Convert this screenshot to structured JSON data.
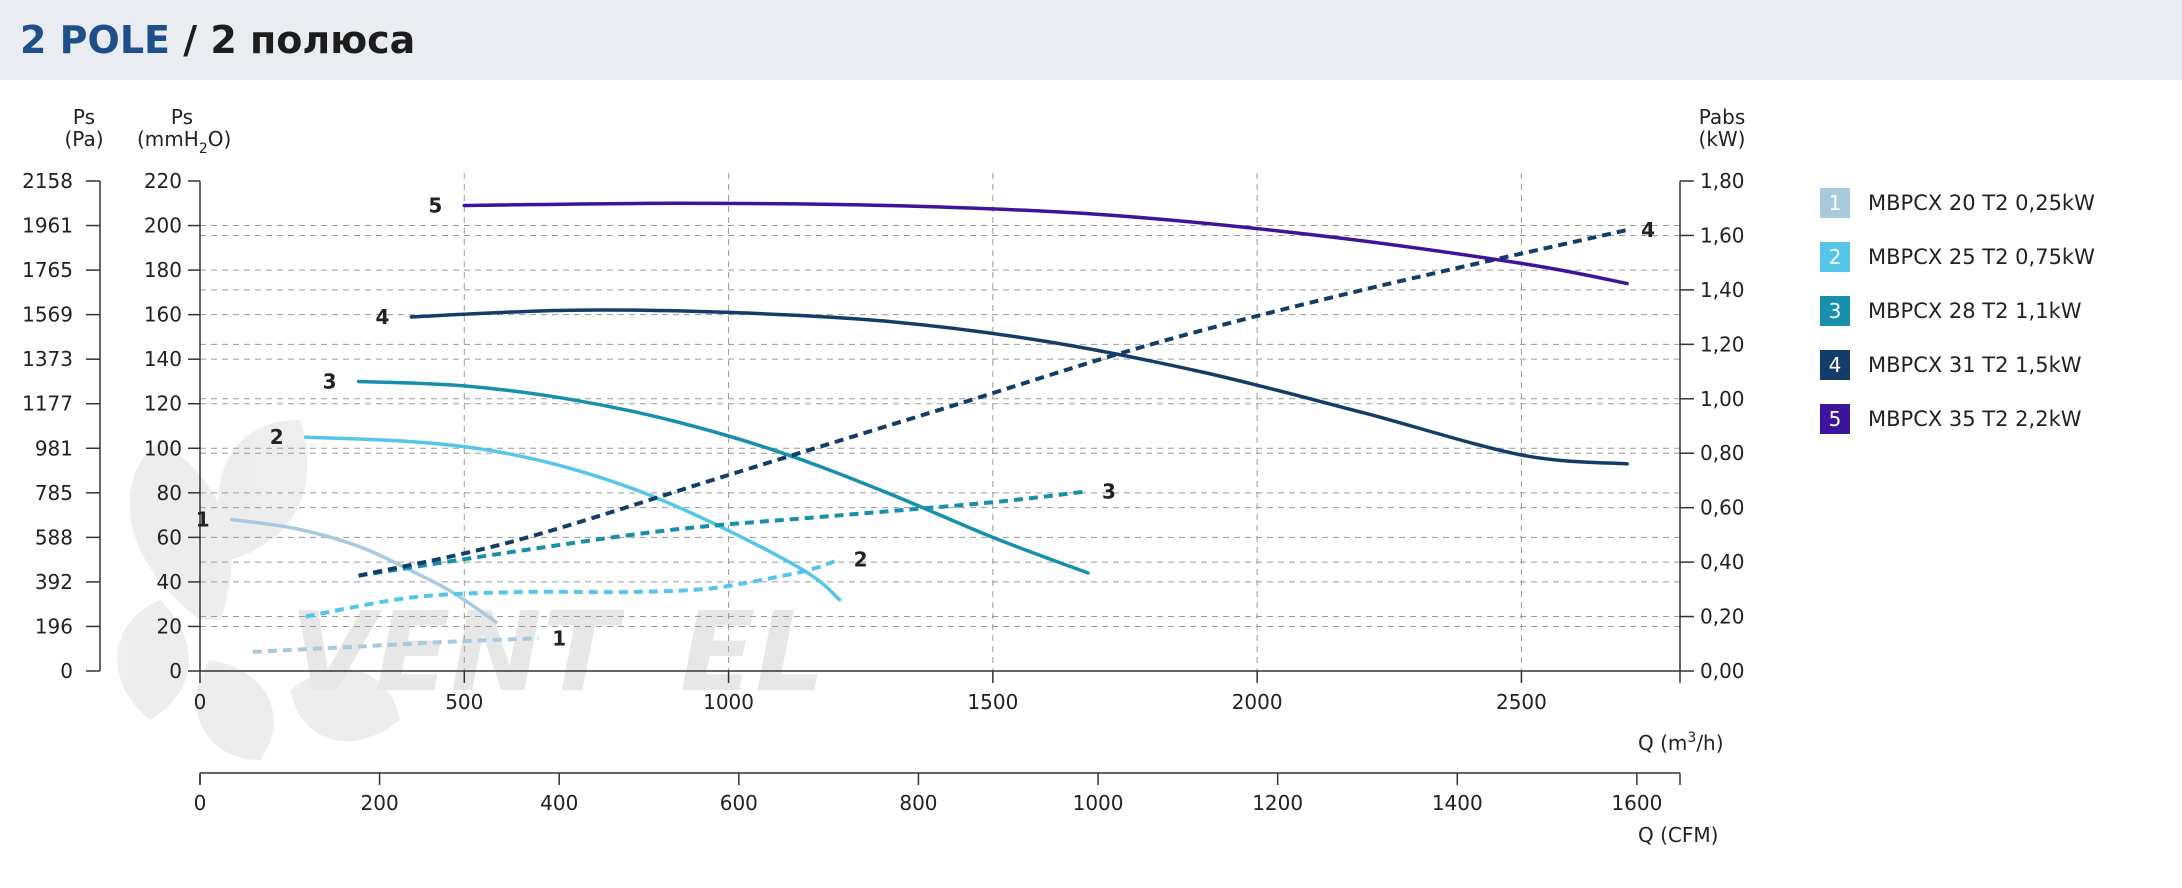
{
  "header": {
    "title_bold": "2 POLE",
    "title_rest": " / 2 полюса"
  },
  "colors": {
    "s1": "#a9c9dc",
    "s2": "#55c6ea",
    "s3": "#1690ac",
    "s4": "#143c68",
    "s5": "#3d149c",
    "header_bg": "#e9edf1",
    "brand_blue": "#1f4f8a",
    "grid": "#9a9a9a"
  },
  "watermark": "VENTEL logo (fan blades)",
  "chart_data": {
    "type": "line",
    "axes": {
      "pa_label_1": "Ps",
      "pa_label_2": "(Pa)",
      "mm_label_1": "Ps",
      "mm_label_2": "(mmH",
      "mm_label_sub": "2",
      "mm_label_3": "O)",
      "kw_label_1": "Pabs",
      "kw_label_2": "(kW)",
      "x_label": "Q (m",
      "x_label_sup": "3",
      "x_label_end": "/h)",
      "cfm_label": "Q (CFM)",
      "ylim_mmH2O": [
        0,
        220
      ],
      "ylim_kw": [
        0,
        1.8
      ],
      "xlim_m3h": [
        0,
        2800
      ],
      "pa_ticks": [
        "2158",
        "1961",
        "1765",
        "1569",
        "1373",
        "1177",
        "981",
        "785",
        "588",
        "392",
        "196",
        "0"
      ],
      "mm_ticks": [
        "220",
        "200",
        "180",
        "160",
        "140",
        "120",
        "100",
        "80",
        "60",
        "40",
        "20",
        "0"
      ],
      "kw_ticks": [
        "1,80",
        "1,60",
        "1,40",
        "1,20",
        "1,00",
        "0,80",
        "0,60",
        "0,40",
        "0,20",
        "0,00"
      ],
      "x_ticks": [
        "0",
        "500",
        "1000",
        "1500",
        "2000",
        "2500"
      ],
      "cfm_ticks": [
        "0",
        "200",
        "400",
        "600",
        "800",
        "1000",
        "1200",
        "1400",
        "1600"
      ],
      "grid": true
    },
    "series": [
      {
        "name": "MBPCX 20 T2 0,25kW",
        "number": "1",
        "color": "#a9c9dc",
        "pressure": {
          "x": [
            60,
            180,
            300,
            400,
            480,
            560
          ],
          "y": [
            68,
            64,
            56,
            45,
            35,
            22
          ]
        },
        "power": {
          "x": [
            100,
            300,
            500,
            640
          ],
          "y": [
            0.07,
            0.09,
            0.11,
            0.12
          ]
        }
      },
      {
        "name": "MBPCX 25 T2 0,75kW",
        "number": "2",
        "color": "#55c6ea",
        "pressure": {
          "x": [
            200,
            400,
            550,
            700,
            850,
            1000,
            1150,
            1210
          ],
          "y": [
            105,
            103,
            99,
            91,
            79,
            63,
            44,
            32
          ]
        },
        "power": {
          "x": [
            200,
            400,
            600,
            800,
            950,
            1050,
            1150,
            1210
          ],
          "y": [
            0.2,
            0.27,
            0.29,
            0.29,
            0.3,
            0.33,
            0.37,
            0.41
          ]
        }
      },
      {
        "name": "MBPCX 28 T2 1,1kW",
        "number": "3",
        "color": "#1690ac",
        "pressure": {
          "x": [
            300,
            500,
            700,
            900,
            1100,
            1300,
            1500,
            1680
          ],
          "y": [
            130,
            128,
            122,
            112,
            98,
            80,
            60,
            44
          ]
        },
        "power": {
          "x": [
            300,
            600,
            900,
            1200,
            1500,
            1680
          ],
          "y": [
            0.35,
            0.44,
            0.52,
            0.57,
            0.62,
            0.66
          ]
        }
      },
      {
        "name": "MBPCX 31 T2 1,5kW",
        "number": "4",
        "color": "#143c68",
        "pressure": {
          "x": [
            400,
            700,
            1000,
            1300,
            1600,
            1900,
            2200,
            2500,
            2700
          ],
          "y": [
            159,
            162,
            161,
            157,
            148,
            134,
            116,
            97,
            93
          ]
        },
        "power": {
          "x": [
            300,
            600,
            1000,
            1400,
            1800,
            2200,
            2700
          ],
          "y": [
            0.35,
            0.48,
            0.72,
            0.96,
            1.2,
            1.4,
            1.62
          ]
        }
      },
      {
        "name": "MBPCX 35 T2 2,2kW",
        "number": "5",
        "color": "#3d149c",
        "pressure": {
          "x": [
            500,
            900,
            1300,
            1700,
            2100,
            2500,
            2700
          ],
          "y": [
            209,
            210,
            209,
            205,
            196,
            183,
            174
          ]
        },
        "power": null
      }
    ]
  }
}
